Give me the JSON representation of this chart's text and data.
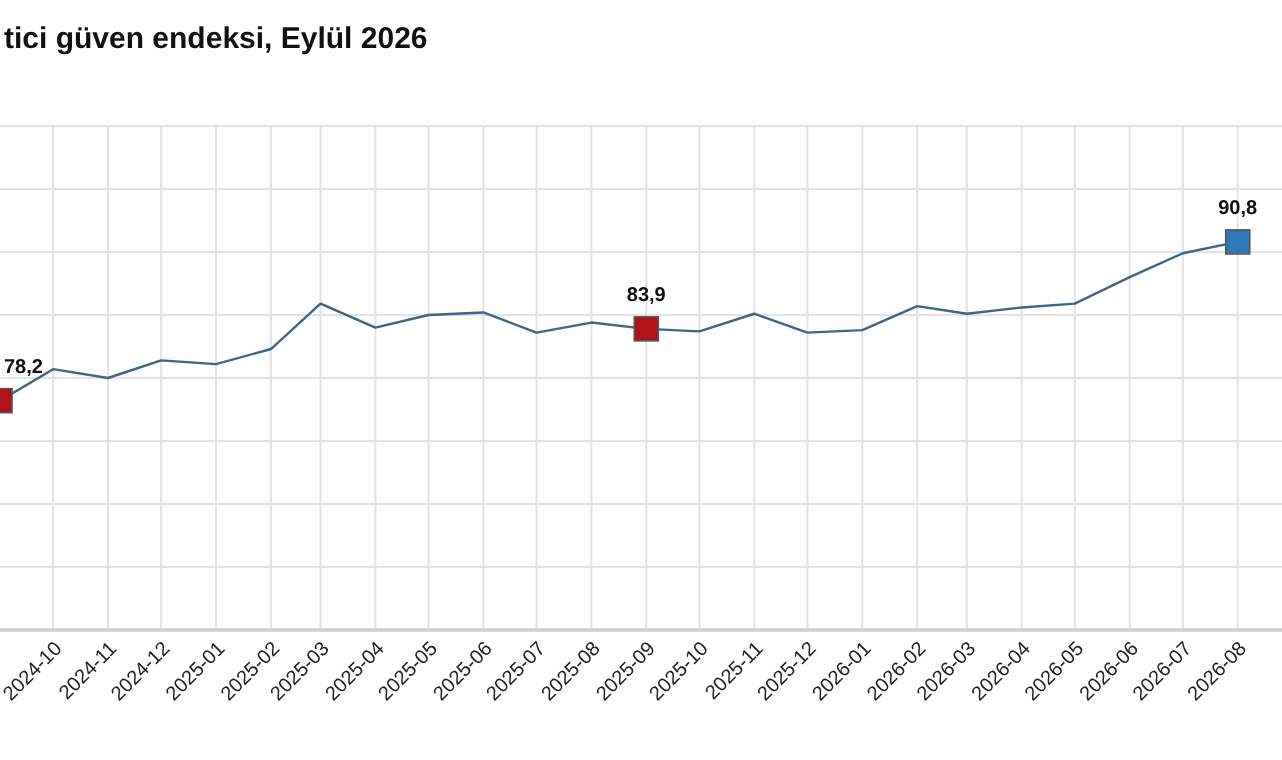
{
  "chart_data": {
    "type": "line",
    "title": "tici güven endeksi, Eylül 2026",
    "x": [
      "2024-09",
      "2024-10",
      "2024-11",
      "2024-12",
      "2025-01",
      "2025-02",
      "2025-03",
      "2025-04",
      "2025-05",
      "2025-06",
      "2025-07",
      "2025-08",
      "2025-09",
      "2025-10",
      "2025-11",
      "2025-12",
      "2026-01",
      "2026-02",
      "2026-03",
      "2026-04",
      "2026-05",
      "2026-06",
      "2026-07",
      "2026-08"
    ],
    "series": [
      {
        "color": "#3d6688",
        "marker": "none",
        "values": [
          78.2,
          80.7,
          80.0,
          81.4,
          81.1,
          82.3,
          85.9,
          84.0,
          85.0,
          85.2,
          83.6,
          84.4,
          83.9,
          83.7,
          85.1,
          83.6,
          83.8,
          85.7,
          85.1,
          85.6,
          85.9,
          88.0,
          89.9,
          90.8
        ]
      },
      {
        "type": "scatter",
        "marker": "square",
        "x": [
          "2024-09",
          "2025-09",
          "2026-08"
        ],
        "colors": [
          "#b0121b",
          "#b0121b",
          "#2f77b5"
        ],
        "values": [
          78.2,
          83.9,
          90.8
        ],
        "value_labels": [
          "78,2",
          "83,9",
          "90,8"
        ]
      }
    ],
    "xlim": [
      "2024-09-01",
      "2026-08-26"
    ],
    "xticks": [
      {
        "value": "2024-10",
        "label": "2024-10"
      },
      {
        "value": "2024-11",
        "label": "2024-11"
      },
      {
        "value": "2024-12",
        "label": "2024-12"
      },
      {
        "value": "2025-01",
        "label": "2025-01"
      },
      {
        "value": "2025-02",
        "label": "2025-02"
      },
      {
        "value": "2025-03",
        "label": "2025-03"
      },
      {
        "value": "2025-04",
        "label": "2025-04"
      },
      {
        "value": "2025-05",
        "label": "2025-05"
      },
      {
        "value": "2025-06",
        "label": "2025-06"
      },
      {
        "value": "2025-07",
        "label": "2025-07"
      },
      {
        "value": "2025-08",
        "label": "2025-08"
      },
      {
        "value": "2025-09",
        "label": "2025-09"
      },
      {
        "value": "2025-10",
        "label": "2025-10"
      },
      {
        "value": "2025-11",
        "label": "2025-11"
      },
      {
        "value": "2025-12",
        "label": "2025-12"
      },
      {
        "value": "2026-01",
        "label": "2026-01"
      },
      {
        "value": "2026-02",
        "label": "2026-02"
      },
      {
        "value": "2026-03",
        "label": "2026-03"
      },
      {
        "value": "2026-04",
        "label": "2026-04"
      },
      {
        "value": "2026-05",
        "label": "2026-05"
      },
      {
        "value": "2026-06",
        "label": "2026-06"
      },
      {
        "value": "2026-07",
        "label": "2026-07"
      },
      {
        "value": "2026-08",
        "label": "2026-08"
      }
    ],
    "ylim": [
      60,
      100
    ],
    "yticks": [
      {
        "value": 60,
        "label": null
      },
      {
        "value": 65,
        "label": null
      },
      {
        "value": 70,
        "label": null
      },
      {
        "value": 75,
        "label": null
      },
      {
        "value": 80,
        "label": null
      },
      {
        "value": 85,
        "label": null
      },
      {
        "value": 90,
        "label": null
      },
      {
        "value": 95,
        "label": null
      },
      {
        "value": 100,
        "label": null
      }
    ],
    "tick_labels": "x",
    "grid": true
  }
}
